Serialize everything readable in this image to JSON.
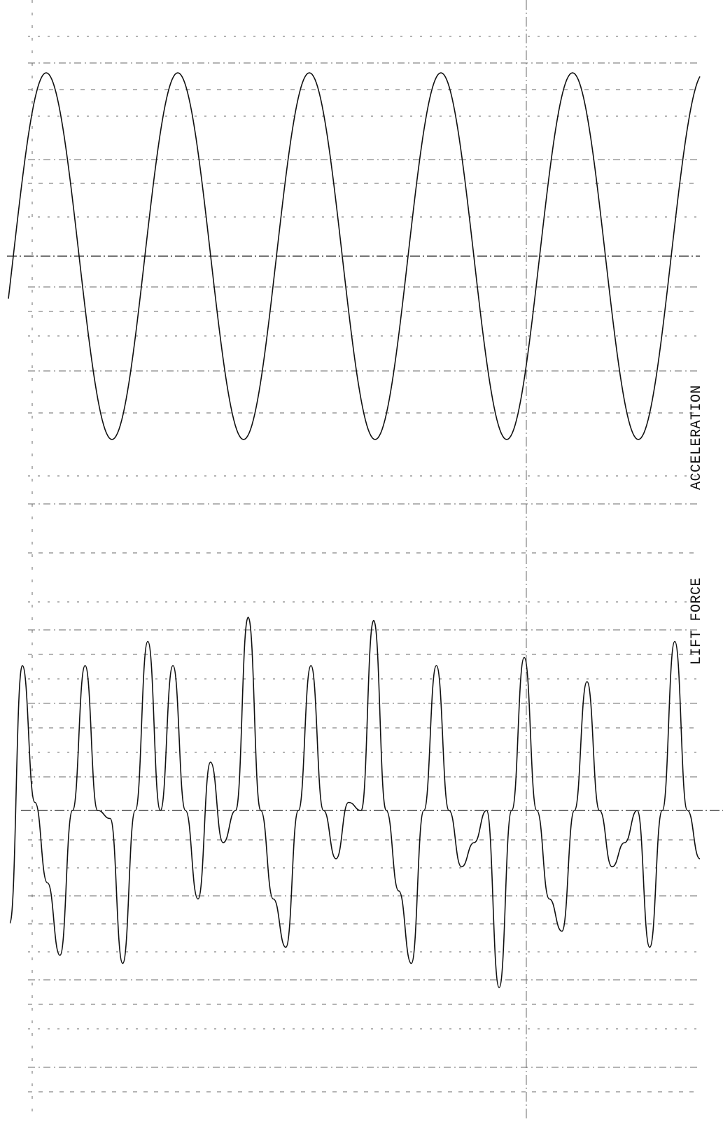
{
  "chart_data": {
    "type": "line",
    "title": "",
    "xlabel": "",
    "ylabel": "",
    "grid": true,
    "panels": [
      {
        "name": "ACCELERATION",
        "label": "ACCELERATION",
        "waveform": "sinusoid",
        "cycles": 5.3,
        "ylim": [
          -1,
          1
        ],
        "peaks": [
          1,
          1,
          1,
          1,
          1
        ],
        "troughs": [
          -1,
          -1,
          -1,
          -1,
          -1
        ]
      },
      {
        "name": "LIFT FORCE",
        "label": "LIFT FORCE",
        "waveform": "multi-harmonic",
        "ylim": [
          -1,
          1
        ],
        "values": [
          -0.7,
          0.9,
          0.05,
          -0.45,
          -0.9,
          0.0,
          0.9,
          0.0,
          -0.05,
          -0.95,
          0.0,
          1.05,
          0.0,
          0.9,
          0.0,
          -0.55,
          0.3,
          -0.2,
          0.0,
          1.2,
          0.0,
          -0.55,
          -0.85,
          0.0,
          0.9,
          0.0,
          -0.3,
          0.05,
          0.0,
          1.18,
          0.0,
          -0.5,
          -0.95,
          0.0,
          0.9,
          0.0,
          -0.35,
          -0.2,
          0.0,
          -1.1,
          0.0,
          0.95,
          0.0,
          -0.55,
          -0.75,
          0.0,
          0.8,
          0.0,
          -0.35,
          -0.2,
          0.0,
          -0.85,
          0.0,
          1.05,
          0.0,
          -0.3
        ]
      }
    ]
  }
}
